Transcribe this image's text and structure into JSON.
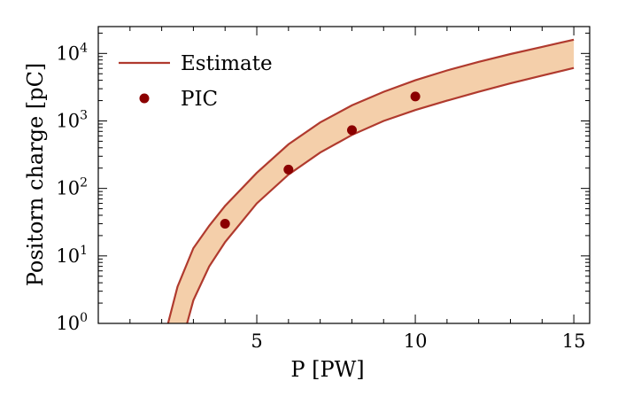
{
  "chart_data": {
    "type": "line",
    "xlabel": "P [PW]",
    "ylabel": "Positorn charge [pC]",
    "xlim": [
      0,
      15.5
    ],
    "ylim": [
      1,
      25000
    ],
    "y_scale": "log",
    "x_ticks": [
      5,
      10,
      15
    ],
    "y_ticks": [
      {
        "value": 1,
        "base": "10",
        "exp": "0"
      },
      {
        "value": 10,
        "base": "10",
        "exp": "1"
      },
      {
        "value": 100,
        "base": "10",
        "exp": "2"
      },
      {
        "value": 1000,
        "base": "10",
        "exp": "3"
      },
      {
        "value": 10000,
        "base": "10",
        "exp": "4"
      }
    ],
    "grid": false,
    "legend_position": "top-left",
    "colors": {
      "line": "#b03a2e",
      "band_fill": "#f4cfaa",
      "marker": "#8b0000"
    },
    "series": [
      {
        "name": "Estimate",
        "kind": "band",
        "x": [
          2.2,
          2.5,
          3,
          3.5,
          4,
          5,
          6,
          7,
          8,
          9,
          10,
          11,
          12,
          13,
          14,
          15
        ],
        "upper": [
          1.0,
          3.5,
          13,
          28,
          55,
          170,
          450,
          950,
          1700,
          2700,
          4000,
          5600,
          7500,
          9800,
          12500,
          16000
        ],
        "x_lower": [
          2.8,
          3,
          3.5,
          4,
          5,
          6,
          7,
          8,
          9,
          10,
          11,
          12,
          13,
          14,
          15
        ],
        "lower": [
          1.0,
          2.2,
          7,
          16,
          60,
          160,
          340,
          620,
          1000,
          1450,
          2000,
          2700,
          3600,
          4700,
          6100
        ]
      },
      {
        "name": "PIC",
        "kind": "scatter",
        "x": [
          4,
          6,
          8,
          10
        ],
        "y": [
          30,
          190,
          730,
          2300
        ]
      }
    ]
  }
}
